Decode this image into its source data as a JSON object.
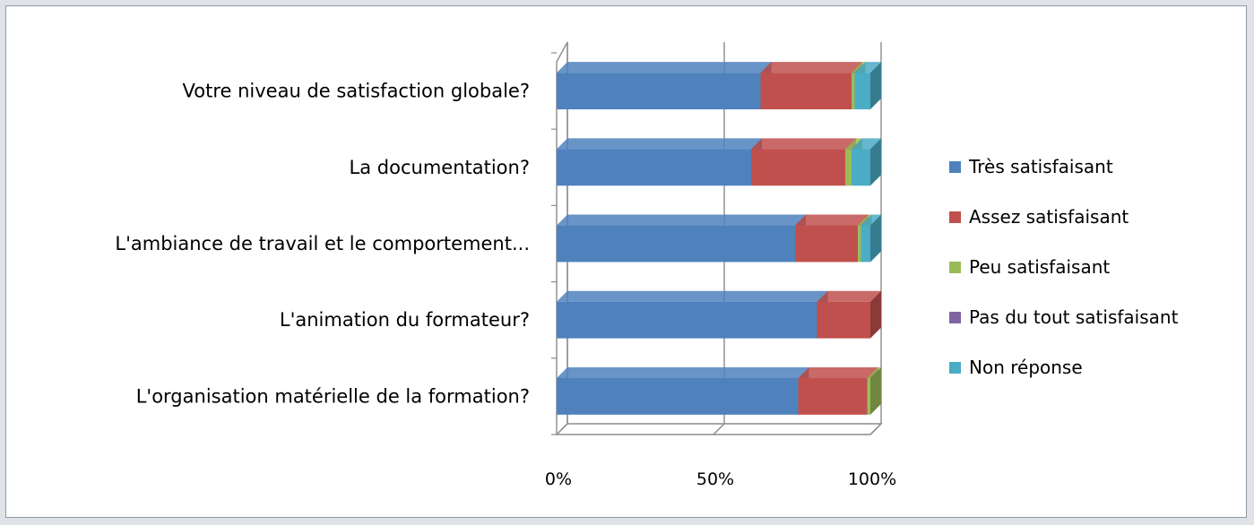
{
  "chart_data": {
    "type": "bar",
    "orientation": "horizontal",
    "stacked": "percent",
    "three_d": true,
    "categories": [
      "Votre niveau de satisfaction globale?",
      "La documentation?",
      "L'ambiance de travail et le comportement...",
      "L'animation du formateur?",
      "L'organisation matérielle de la formation?"
    ],
    "series": [
      {
        "name": "Très satisfaisant",
        "color": "#4f81bd",
        "values": [
          65,
          62,
          76,
          83,
          77
        ]
      },
      {
        "name": "Assez satisfaisant",
        "color": "#c0504d",
        "values": [
          29,
          30,
          20,
          17,
          22
        ]
      },
      {
        "name": "Peu satisfaisant",
        "color": "#9bbb59",
        "values": [
          1,
          2,
          1,
          0,
          1
        ]
      },
      {
        "name": "Pas du tout satisfaisant",
        "color": "#8064a2",
        "values": [
          0,
          0,
          0,
          0,
          0
        ]
      },
      {
        "name": "Non réponse",
        "color": "#4bacc6",
        "values": [
          5,
          6,
          3,
          0,
          0
        ]
      }
    ],
    "x_ticks": [
      "0%",
      "50%",
      "100%"
    ],
    "xlim": [
      0,
      100
    ],
    "title": "",
    "xlabel": "",
    "ylabel": "",
    "grid": true,
    "legend_position": "right"
  }
}
